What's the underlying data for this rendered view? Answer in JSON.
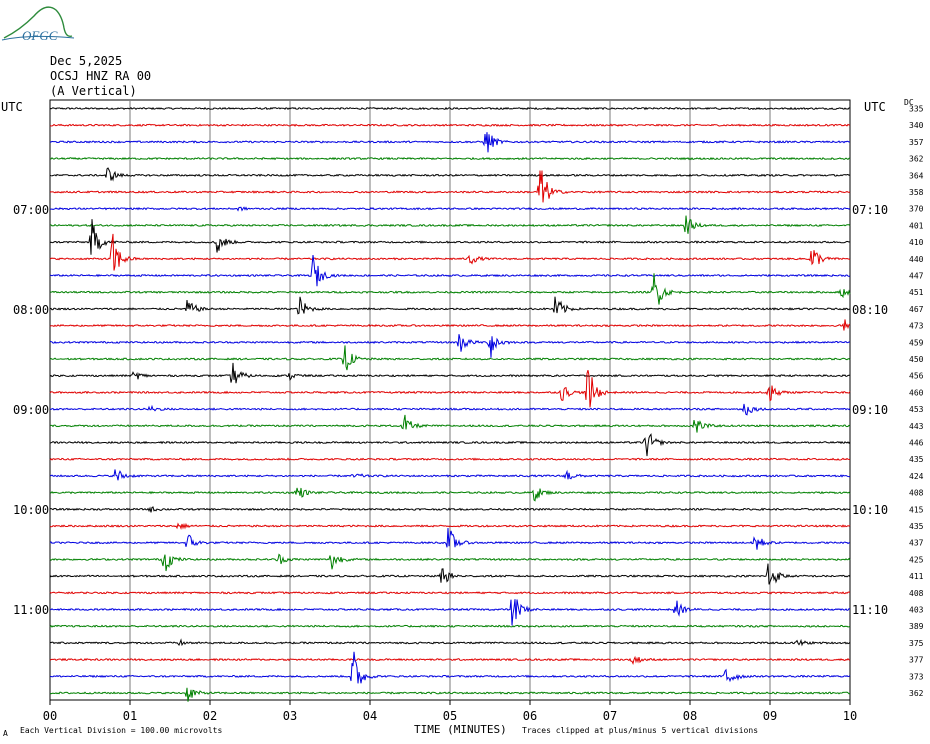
{
  "logo": {
    "text": "OFGC",
    "color": "#2a6f9e",
    "accent": "#2e8b3c"
  },
  "header": {
    "date": "Dec 5,2025",
    "station": "OCSJ HNZ RA 00",
    "component": "(A Vertical)"
  },
  "utc_left": "UTC",
  "utc_right": "UTC",
  "dc_header": "DC",
  "left_time_labels": [
    "07:00",
    "08:00",
    "09:00",
    "10:00",
    "11:00"
  ],
  "right_time_labels": [
    "07:10",
    "08:10",
    "09:10",
    "10:10",
    "11:10"
  ],
  "footer": {
    "left_symbol": "A",
    "division_note": "Each Vertical Division =  100.00 microvolts",
    "axis_title": "TIME (MINUTES)",
    "clip_note": "Traces clipped at plus/minus 5 vertical divisions"
  },
  "chart_data": {
    "type": "line",
    "xlabel": "TIME (MINUTES)",
    "xlim": [
      0,
      10
    ],
    "x_ticks": [
      "00",
      "01",
      "02",
      "03",
      "04",
      "05",
      "06",
      "07",
      "08",
      "09",
      "10"
    ],
    "trace_colors": [
      "#000000",
      "#e00000",
      "#0000e0",
      "#008000"
    ],
    "dc_offsets": [
      335,
      340,
      357,
      362,
      364,
      358,
      370,
      401,
      410,
      440,
      447,
      451,
      467,
      473,
      459,
      450,
      456,
      460,
      453,
      443,
      446,
      435,
      424,
      408,
      415,
      435,
      437,
      425,
      411,
      408,
      403,
      389,
      375,
      377,
      373,
      362
    ],
    "events": [
      {
        "trace": 2,
        "minute": 5.45,
        "amplitude": 2.4
      },
      {
        "trace": 4,
        "minute": 0.72,
        "amplitude": 1.4
      },
      {
        "trace": 5,
        "minute": 6.12,
        "amplitude": 5.0
      },
      {
        "trace": 6,
        "minute": 2.35,
        "amplitude": 0.3
      },
      {
        "trace": 7,
        "minute": 7.95,
        "amplitude": 1.6
      },
      {
        "trace": 8,
        "minute": 0.52,
        "amplitude": 3.5
      },
      {
        "trace": 8,
        "minute": 2.08,
        "amplitude": 2.2
      },
      {
        "trace": 9,
        "minute": 0.78,
        "amplitude": 4.0
      },
      {
        "trace": 9,
        "minute": 5.25,
        "amplitude": 0.9
      },
      {
        "trace": 9,
        "minute": 9.52,
        "amplitude": 2.5
      },
      {
        "trace": 10,
        "minute": 3.28,
        "amplitude": 3.5
      },
      {
        "trace": 11,
        "minute": 7.55,
        "amplitude": 4.0
      },
      {
        "trace": 11,
        "minute": 9.88,
        "amplitude": 0.9
      },
      {
        "trace": 12,
        "minute": 1.72,
        "amplitude": 1.6
      },
      {
        "trace": 12,
        "minute": 3.12,
        "amplitude": 1.9
      },
      {
        "trace": 12,
        "minute": 6.32,
        "amplitude": 2.3
      },
      {
        "trace": 13,
        "minute": 9.92,
        "amplitude": 1.1
      },
      {
        "trace": 14,
        "minute": 5.12,
        "amplitude": 1.8
      },
      {
        "trace": 14,
        "minute": 5.5,
        "amplitude": 2.7
      },
      {
        "trace": 15,
        "minute": 3.68,
        "amplitude": 2.4
      },
      {
        "trace": 16,
        "minute": 1.05,
        "amplitude": 0.8
      },
      {
        "trace": 16,
        "minute": 2.28,
        "amplitude": 2.2
      },
      {
        "trace": 16,
        "minute": 3.0,
        "amplitude": 0.6
      },
      {
        "trace": 17,
        "minute": 6.4,
        "amplitude": 1.4
      },
      {
        "trace": 17,
        "minute": 6.72,
        "amplitude": 4.4
      },
      {
        "trace": 17,
        "minute": 8.98,
        "amplitude": 1.8
      },
      {
        "trace": 18,
        "minute": 1.25,
        "amplitude": 0.5
      },
      {
        "trace": 18,
        "minute": 8.68,
        "amplitude": 1.3
      },
      {
        "trace": 19,
        "minute": 4.42,
        "amplitude": 1.9
      },
      {
        "trace": 19,
        "minute": 8.05,
        "amplitude": 1.8
      },
      {
        "trace": 20,
        "minute": 7.45,
        "amplitude": 2.5
      },
      {
        "trace": 22,
        "minute": 0.82,
        "amplitude": 1.4
      },
      {
        "trace": 22,
        "minute": 3.8,
        "amplitude": 0.5
      },
      {
        "trace": 22,
        "minute": 6.45,
        "amplitude": 1.0
      },
      {
        "trace": 23,
        "minute": 3.08,
        "amplitude": 1.4
      },
      {
        "trace": 23,
        "minute": 6.05,
        "amplitude": 1.4
      },
      {
        "trace": 24,
        "minute": 1.25,
        "amplitude": 0.4
      },
      {
        "trace": 25,
        "minute": 1.6,
        "amplitude": 0.6
      },
      {
        "trace": 26,
        "minute": 1.72,
        "amplitude": 1.6
      },
      {
        "trace": 26,
        "minute": 4.98,
        "amplitude": 2.6
      },
      {
        "trace": 26,
        "minute": 8.8,
        "amplitude": 2.0
      },
      {
        "trace": 27,
        "minute": 1.42,
        "amplitude": 2.4
      },
      {
        "trace": 27,
        "minute": 2.85,
        "amplitude": 0.9
      },
      {
        "trace": 27,
        "minute": 3.52,
        "amplitude": 1.9
      },
      {
        "trace": 28,
        "minute": 4.9,
        "amplitude": 1.8
      },
      {
        "trace": 28,
        "minute": 8.98,
        "amplitude": 2.8
      },
      {
        "trace": 30,
        "minute": 5.78,
        "amplitude": 3.2
      },
      {
        "trace": 30,
        "minute": 7.82,
        "amplitude": 1.5
      },
      {
        "trace": 32,
        "minute": 1.62,
        "amplitude": 0.4
      },
      {
        "trace": 32,
        "minute": 9.35,
        "amplitude": 0.5
      },
      {
        "trace": 33,
        "minute": 7.28,
        "amplitude": 0.9
      },
      {
        "trace": 34,
        "minute": 3.78,
        "amplitude": 5.0
      },
      {
        "trace": 34,
        "minute": 8.45,
        "amplitude": 2.6
      },
      {
        "trace": 35,
        "minute": 1.72,
        "amplitude": 1.4
      }
    ]
  }
}
